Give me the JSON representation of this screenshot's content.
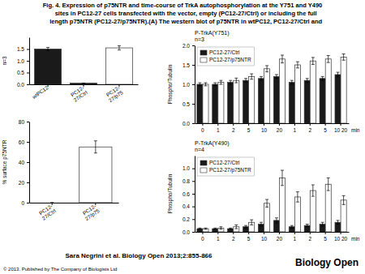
{
  "chart_data": [
    {
      "type": "bar",
      "ylabel": "n=3",
      "categories": [
        "wtPC12",
        "PC12-\n27/Ctrl",
        "PC12-\n27/p75"
      ],
      "values": [
        1.5,
        0.05,
        1.55
      ],
      "errors": [
        0.07,
        0.0,
        0.09
      ],
      "colors": [
        "#1a1a1a",
        "#1a1a1a",
        "#ffffff"
      ],
      "ylim": [
        0.0,
        2.0
      ],
      "yticks": [
        {
          "value": 0.0,
          "label": "0.0"
        },
        0.5,
        {
          "value": 1.0,
          "label": "1.0"
        },
        1.5
      ],
      "annotations": [
        "Fig. 4. Expression of p75NTR and time-course of TrkA autophosphorylation at the Y751 and Y490\n    sites in PC12-27 cells transfected with the vector, empty (PC12-27/Ctrl) or including the full\n    length p75NTR (PC12-27/p75NTR).(A) The western blot of p75NTR in wtPC12, PC12-27/Ctrl and",
        "Sara Negrini et al. Biology Open 2013;2:855-866",
        "© 2013. Published by The Company of Biologists Ltd",
        "Biology Open"
      ]
    },
    {
      "type": "bar",
      "ylabel": "% surface p75NTR",
      "categories": [
        "PC12-\n27/Ctrl",
        "PC12-\n27/p75"
      ],
      "values": [
        0,
        55
      ],
      "errors": [
        0,
        6
      ],
      "color": "#ffffff",
      "ylim": [
        0,
        80
      ],
      "yticks": [
        0,
        20,
        40,
        60,
        80
      ]
    },
    {
      "type": "bar",
      "title": "P-TrkA(Y751)\nn=3",
      "ylabel": "Phospho/Tubulin",
      "xlabel": "min",
      "categories": [
        "0",
        "1",
        "2",
        "5",
        "10",
        "20",
        "1",
        "2",
        "5",
        "10 20"
      ],
      "series": [
        {
          "name": "PC12-27/Ctrl",
          "color": "#1a1a1a",
          "values": [
            1.0,
            1.0,
            1.05,
            1.1,
            1.15,
            1.2,
            1.05,
            1.1,
            1.15,
            1.25
          ],
          "errors": [
            0.04,
            0.04,
            0.05,
            0.05,
            0.05,
            0.05,
            0.05,
            0.05,
            0.05,
            0.06
          ]
        },
        {
          "name": "PC12-27/p75NTR",
          "color": "#ffffff",
          "values": [
            1.0,
            1.05,
            1.1,
            1.2,
            1.4,
            1.65,
            1.5,
            1.6,
            1.65,
            1.7
          ],
          "errors": [
            0.04,
            0.05,
            0.06,
            0.07,
            0.08,
            0.1,
            0.08,
            0.09,
            0.09,
            0.08
          ]
        }
      ],
      "ylim": [
        0,
        2.0
      ],
      "yticks": [
        {
          "value": 0,
          "label": "0.0"
        },
        0.5,
        {
          "value": 1.0,
          "label": "1.0"
        },
        1.5,
        {
          "value": 2.0,
          "label": "2.0"
        }
      ],
      "legend": "upper left"
    },
    {
      "type": "bar",
      "title": "P-TrkA(Y490)\nn=4",
      "ylabel": "Phospho/Tubulin",
      "xlabel": "min",
      "categories": [
        "0",
        "1",
        "2",
        "5",
        "10",
        "20",
        "1",
        "2",
        "5",
        "10 20"
      ],
      "series": [
        {
          "name": "PC12-27/Ctrl",
          "color": "#1a1a1a",
          "values": [
            0.05,
            0.05,
            0.05,
            0.08,
            0.12,
            0.18,
            0.08,
            0.1,
            0.12,
            0.15
          ],
          "errors": [
            0.01,
            0.01,
            0.01,
            0.02,
            0.03,
            0.04,
            0.02,
            0.02,
            0.03,
            0.03
          ]
        },
        {
          "name": "PC12-27/p75NTR",
          "color": "#ffffff",
          "values": [
            0.05,
            0.06,
            0.08,
            0.15,
            0.45,
            0.85,
            0.55,
            0.65,
            0.75,
            0.5
          ],
          "errors": [
            0.01,
            0.02,
            0.03,
            0.04,
            0.06,
            0.12,
            0.08,
            0.09,
            0.1,
            0.07
          ]
        }
      ],
      "ylim": [
        0,
        1.2
      ],
      "yticks": [
        {
          "value": 0,
          "label": "0.0"
        },
        0.2,
        0.4,
        0.6,
        0.8,
        {
          "value": 1.0,
          "label": "1.0"
        }
      ],
      "legend": "upper left"
    }
  ]
}
